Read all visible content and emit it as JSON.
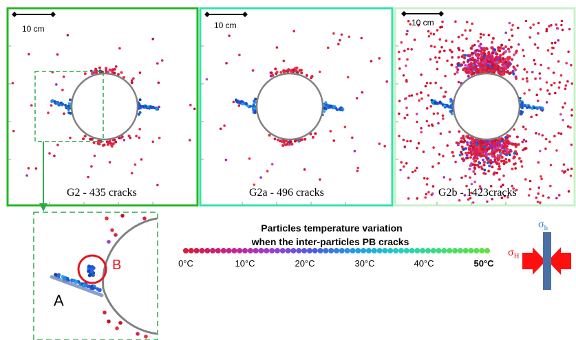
{
  "colors": {
    "panel_g2_border": "#22b822",
    "panel_g2a_border": "#33e3a8",
    "panel_g2b_border": "#c8f0c8",
    "borehole": "#808080",
    "zoom_dash": "#2ca84a",
    "circle_b": "#e8141c",
    "label_b": "#e8141c",
    "arrow_red": "#ff1010",
    "arrow_blue": "#4a6fa5",
    "sigma_h_red": "#e8141c",
    "sigma_h_blue": "#2e7fd0"
  },
  "panels": [
    {
      "id": "g2",
      "scale_label": "10 cm",
      "caption": "G2 - 435 cracks"
    },
    {
      "id": "g2a",
      "scale_label": "10 cm",
      "caption": "G2a - 496 cracks"
    },
    {
      "id": "g2b",
      "scale_label": "10 cm",
      "caption": "G2b - 1423cracks"
    }
  ],
  "zoom": {
    "label_a": "A",
    "label_b": "B"
  },
  "legend": {
    "title_line1": "Particles temperature variation",
    "title_line2": "when the inter-particles PB cracks",
    "ticks": [
      "0°C",
      "10°C",
      "20°C",
      "30°C",
      "40°C",
      "50°C"
    ],
    "colorbar": [
      "#d81b3b",
      "#c9208a",
      "#9a3fd0",
      "#4a5fe0",
      "#1ea0e8",
      "#20d0c0",
      "#40e070",
      "#60e040"
    ]
  },
  "stress": {
    "sigma_big": "σ",
    "sigma_big_sub": "H",
    "sigma_small": "σ",
    "sigma_small_sub": "h"
  }
}
